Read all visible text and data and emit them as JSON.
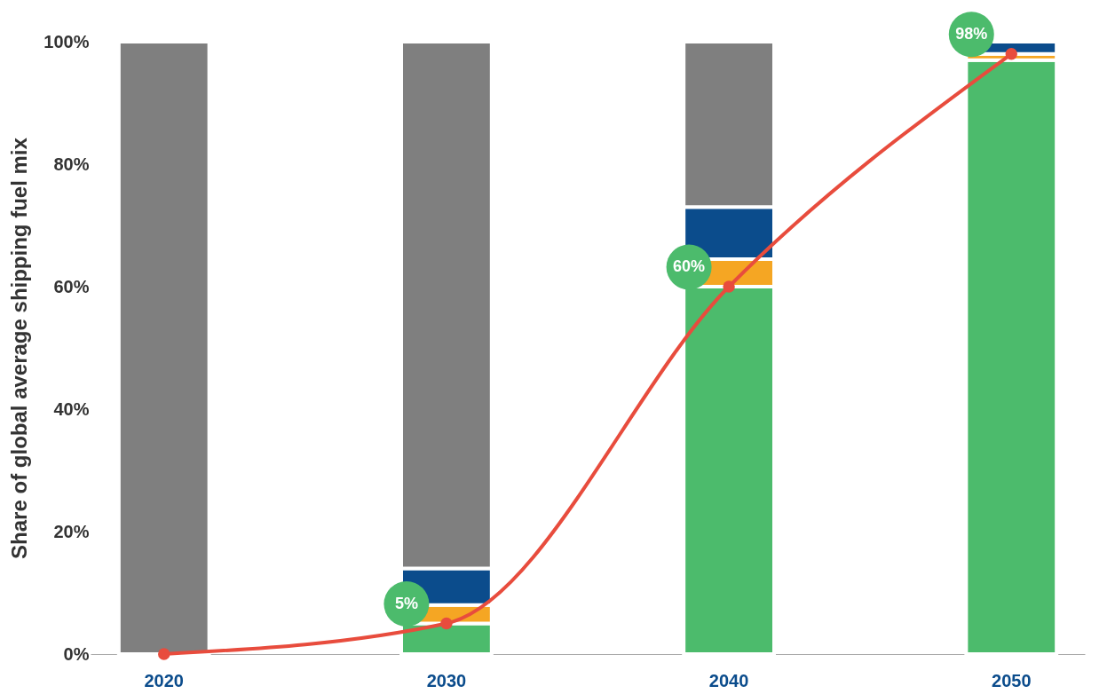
{
  "chart_data": {
    "type": "bar",
    "stacked": true,
    "ylabel": "Share of global average shipping fuel mix",
    "categories": [
      "2020",
      "2030",
      "2040",
      "2050"
    ],
    "ylim": [
      0,
      100
    ],
    "yticks": [
      {
        "value": 0,
        "label": "0%"
      },
      {
        "value": 20,
        "label": "20%"
      },
      {
        "value": 40,
        "label": "40%"
      },
      {
        "value": 60,
        "label": "60%"
      },
      {
        "value": 80,
        "label": "80%"
      },
      {
        "value": 100,
        "label": "100%"
      }
    ],
    "series": [
      {
        "color": "#4cbb6c",
        "values": [
          0,
          5,
          60,
          97
        ]
      },
      {
        "color": "#f5a623",
        "values": [
          0,
          3,
          4.5,
          1
        ]
      },
      {
        "color": "#0b4c8c",
        "values": [
          0,
          6,
          8.5,
          2
        ]
      },
      {
        "color": "#7f7f7f",
        "values": [
          100,
          86,
          27,
          0
        ]
      },
      {
        "type": "line",
        "color": "#e84c3d",
        "marker": "circle",
        "values": [
          0,
          5,
          60,
          98
        ],
        "value_labels": [
          null,
          "5%",
          "60%",
          "98%"
        ]
      }
    ]
  }
}
